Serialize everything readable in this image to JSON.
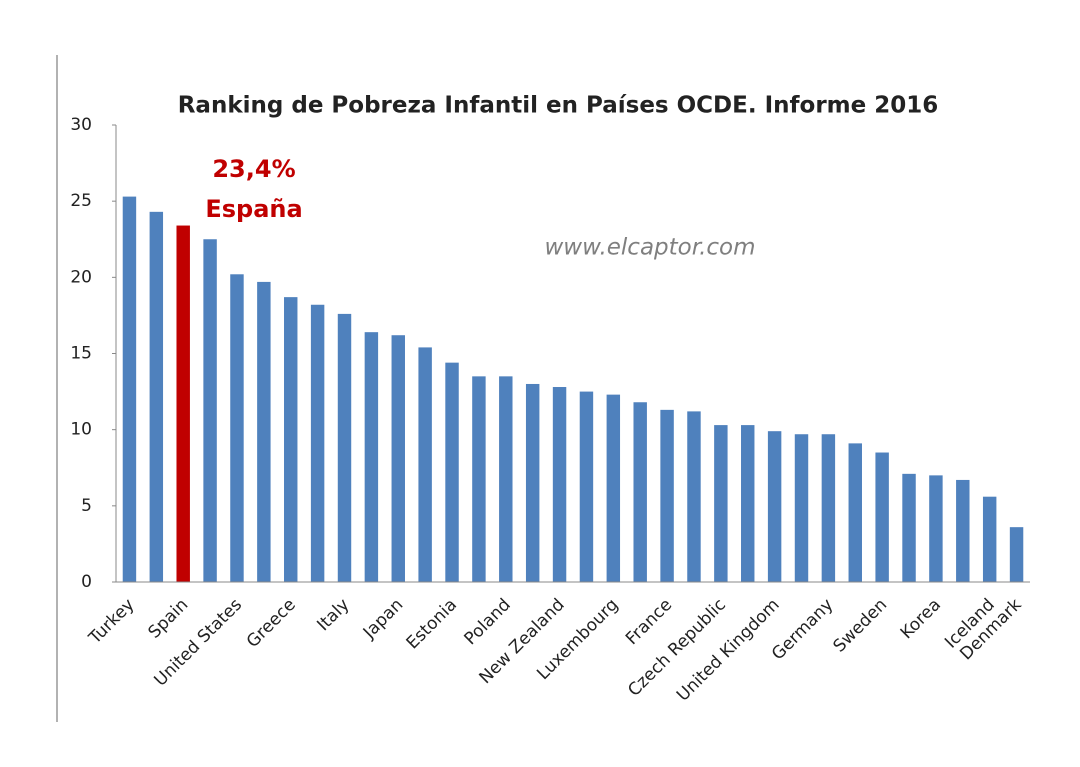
{
  "chart_data": {
    "type": "bar",
    "title": "Ranking de Pobreza Infantil en Países OCDE. Informe 2016",
    "annotations": [
      "23,4%",
      "España",
      "www.elcaptor.com"
    ],
    "categories": [
      "Turkey",
      null,
      "Spain",
      null,
      "United States",
      null,
      "Greece",
      null,
      "Italy",
      null,
      "Japan",
      null,
      "Estonia",
      null,
      "Poland",
      null,
      "New Zealand",
      null,
      "Luxembourg",
      null,
      "France",
      null,
      "Czech Republic",
      null,
      "United Kingdom",
      null,
      "Germany",
      null,
      "Sweden",
      null,
      "Korea",
      null,
      "Iceland",
      "Denmark"
    ],
    "values": [
      25.3,
      24.3,
      23.4,
      22.5,
      20.2,
      19.7,
      18.7,
      18.2,
      17.6,
      16.4,
      16.2,
      15.4,
      14.4,
      13.5,
      13.5,
      13.0,
      12.8,
      12.5,
      12.3,
      11.8,
      11.3,
      11.2,
      10.3,
      10.3,
      9.9,
      9.7,
      9.7,
      9.1,
      8.5,
      7.1,
      7.0,
      6.7,
      5.6,
      3.6
    ],
    "colors": [
      "#4f81bd",
      "#4f81bd",
      "#c00000",
      "#4f81bd",
      "#4f81bd",
      "#4f81bd",
      "#4f81bd",
      "#4f81bd",
      "#4f81bd",
      "#4f81bd",
      "#4f81bd",
      "#4f81bd",
      "#4f81bd",
      "#4f81bd",
      "#4f81bd",
      "#4f81bd",
      "#4f81bd",
      "#4f81bd",
      "#4f81bd",
      "#4f81bd",
      "#4f81bd",
      "#4f81bd",
      "#4f81bd",
      "#4f81bd",
      "#4f81bd",
      "#4f81bd",
      "#4f81bd",
      "#4f81bd",
      "#4f81bd",
      "#4f81bd",
      "#4f81bd",
      "#4f81bd",
      "#4f81bd",
      "#4f81bd"
    ],
    "ylim": [
      0,
      30
    ],
    "yticks": [
      0,
      5,
      10,
      15,
      20,
      25,
      30
    ],
    "grid": false
  }
}
